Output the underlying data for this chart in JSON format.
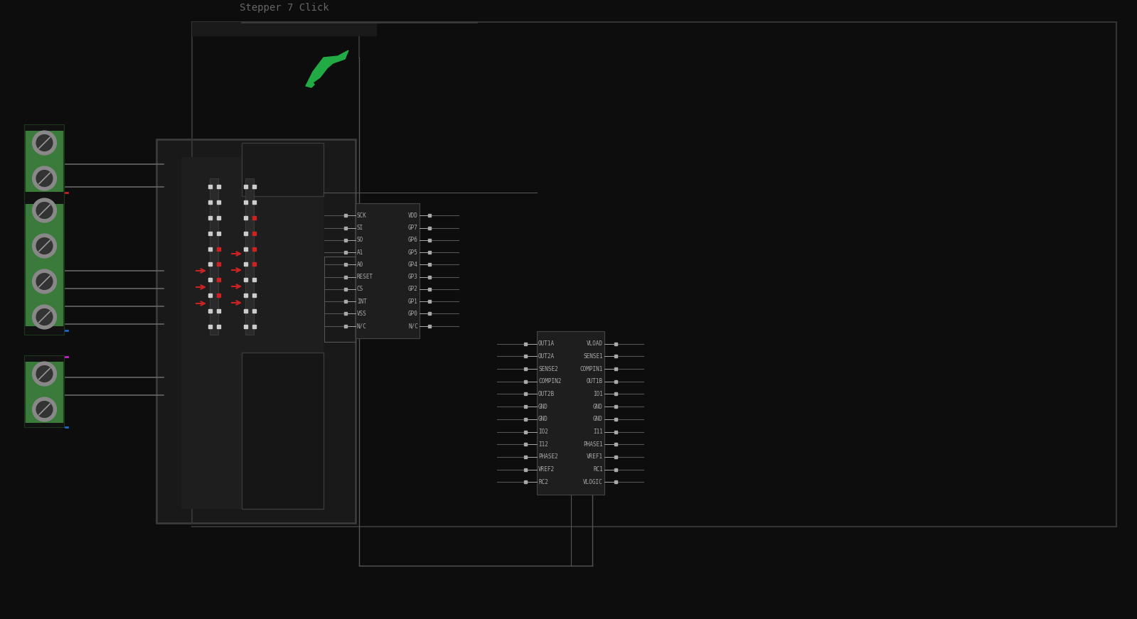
{
  "bg_color": "#0d0d0d",
  "logo_color": "#22aa44",
  "wire_color": "#555555",
  "wire_color2": "#888888",
  "ic_bg": "#222222",
  "ic_border": "#555555",
  "label_color": "#aaaaaa",
  "green_term_color": "#2d6e2d",
  "green_term_border": "#1a401a",
  "board_outline_color": "#3a3a3a",
  "board_fill": "#191919",
  "board_inner_fill": "#1e1e1e",
  "connector_fill": "#2a2a2a",
  "connector_border": "#444444",
  "pin_white": "#cccccc",
  "pin_red": "#cc2222",
  "pin_blue": "#2266cc",
  "pin_magenta": "#cc22cc",
  "driver_left_pins": [
    "OUT1A",
    "OUT2A",
    "SENSE2",
    "COMPIN2",
    "OUT2B",
    "GND",
    "GND",
    "IO2",
    "I12",
    "PHASE2",
    "VREF2",
    "RC2"
  ],
  "driver_right_pins": [
    "VLOAD",
    "SENSE1",
    "COMPIN1",
    "OUT1B",
    "IO1",
    "GND",
    "GND",
    "I11",
    "PHASE1",
    "VREF1",
    "RC1",
    "VLOGIC"
  ],
  "spi_left_pins": [
    "SCK",
    "SI",
    "SO",
    "A1",
    "A0",
    "RESET",
    "CS",
    "INT",
    "VSS",
    "N/C"
  ],
  "spi_right_pins": [
    "VDD",
    "GP7",
    "GP6",
    "GP5",
    "GP4",
    "GP3",
    "GP2",
    "GP1",
    "GP0",
    "N/C"
  ]
}
